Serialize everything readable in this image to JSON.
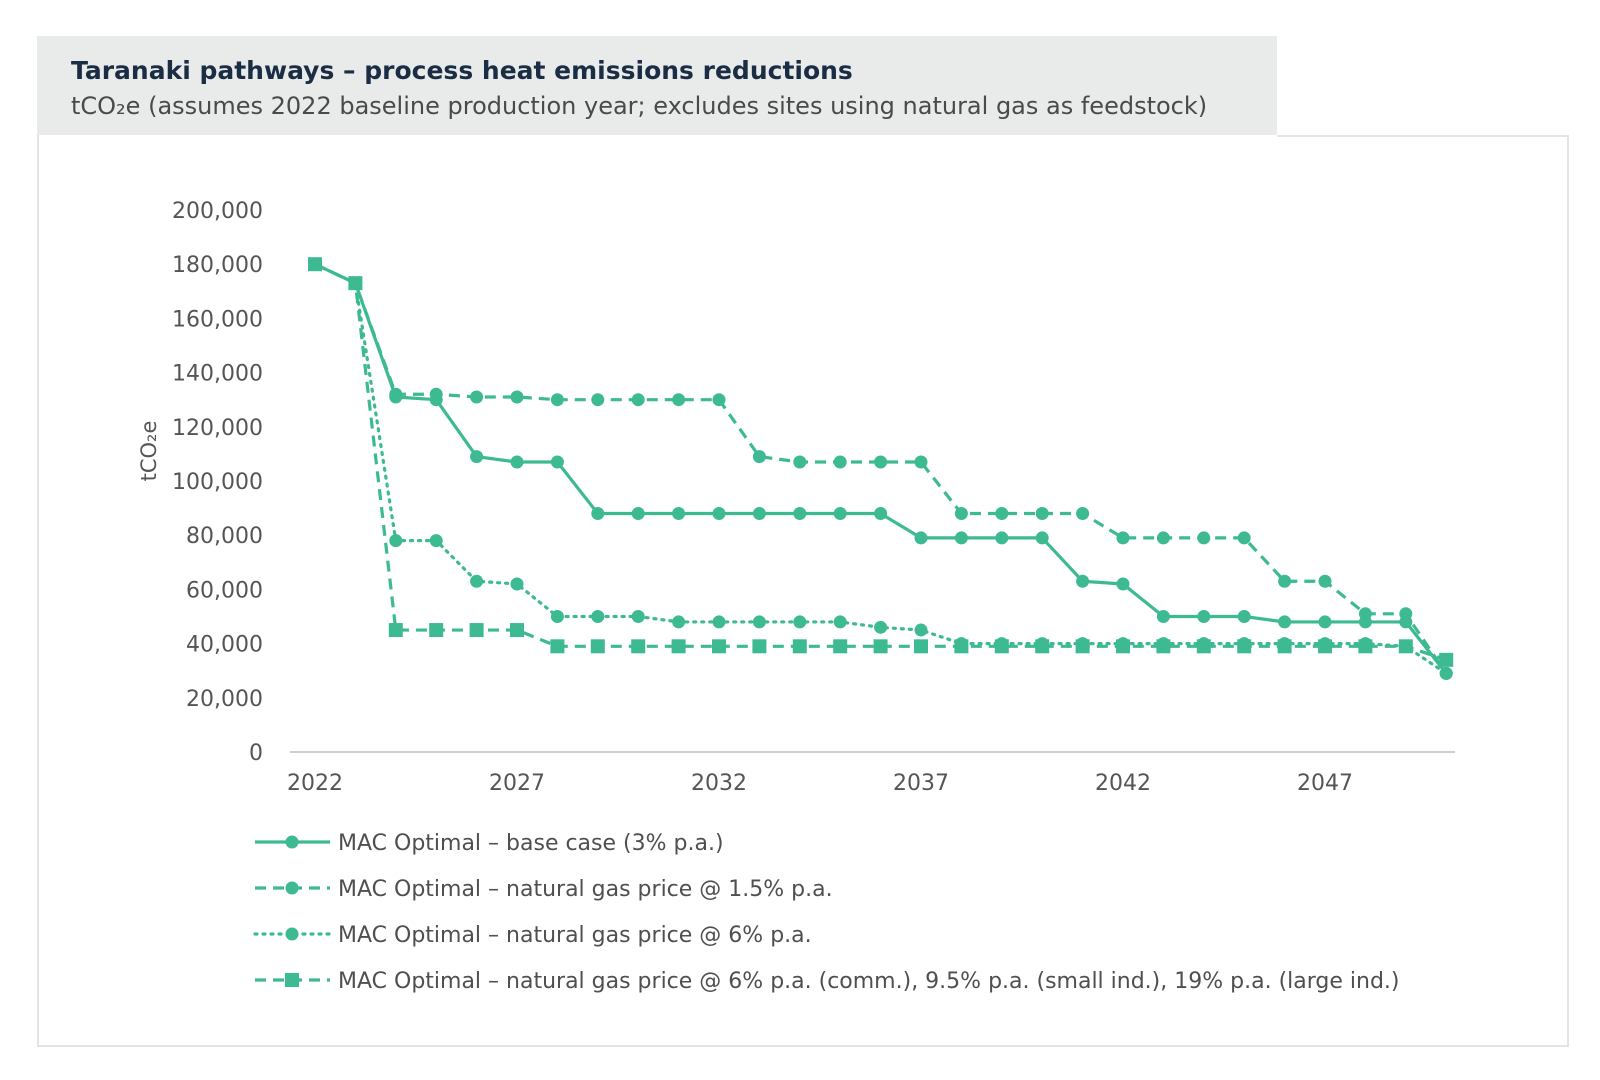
{
  "header": {
    "title": "Taranaki pathways – process heat emissions reductions",
    "subtitle": "tCO₂e (assumes 2022 baseline production year; excludes sites using natural gas as feedstock)"
  },
  "chart_data": {
    "type": "line",
    "ylabel": "tCO₂e",
    "xlabel": "",
    "ylim": [
      0,
      200000
    ],
    "xlim": [
      2022,
      2051
    ],
    "yticks": [
      0,
      20000,
      40000,
      60000,
      80000,
      100000,
      120000,
      140000,
      160000,
      180000,
      200000
    ],
    "ytick_labels": [
      "0",
      "20,000",
      "40,000",
      "60,000",
      "80,000",
      "100,000",
      "120,000",
      "140,000",
      "160,000",
      "180,000",
      "200,000"
    ],
    "xticks": [
      2022,
      2027,
      2032,
      2037,
      2042,
      2047
    ],
    "xtick_labels": [
      "2022",
      "2027",
      "2032",
      "2037",
      "2042",
      "2047"
    ],
    "grid": false,
    "legend_placement": "bottom",
    "color": "#3dba92",
    "x": [
      2022,
      2023,
      2024,
      2025,
      2026,
      2027,
      2028,
      2029,
      2030,
      2031,
      2032,
      2033,
      2034,
      2035,
      2036,
      2037,
      2038,
      2039,
      2040,
      2041,
      2042,
      2043,
      2044,
      2045,
      2046,
      2047,
      2048,
      2049,
      2050
    ],
    "series": [
      {
        "name": "MAC Optimal – base case (3% p.a.)",
        "style": "solid",
        "marker": "circle",
        "values": [
          180000,
          173000,
          131000,
          130000,
          109000,
          107000,
          107000,
          88000,
          88000,
          88000,
          88000,
          88000,
          88000,
          88000,
          88000,
          79000,
          79000,
          79000,
          79000,
          63000,
          62000,
          50000,
          50000,
          50000,
          48000,
          48000,
          48000,
          48000,
          29000
        ]
      },
      {
        "name": "MAC Optimal – natural gas price @ 1.5% p.a.",
        "style": "dashed",
        "marker": "circle",
        "values": [
          180000,
          173000,
          132000,
          132000,
          131000,
          131000,
          130000,
          130000,
          130000,
          130000,
          130000,
          109000,
          107000,
          107000,
          107000,
          107000,
          88000,
          88000,
          88000,
          88000,
          79000,
          79000,
          79000,
          79000,
          63000,
          63000,
          51000,
          51000,
          29000
        ]
      },
      {
        "name": "MAC Optimal – natural gas price @ 6% p.a.",
        "style": "dotted",
        "marker": "circle",
        "values": [
          180000,
          173000,
          78000,
          78000,
          63000,
          62000,
          50000,
          50000,
          50000,
          48000,
          48000,
          48000,
          48000,
          48000,
          46000,
          45000,
          40000,
          40000,
          40000,
          40000,
          40000,
          40000,
          40000,
          40000,
          40000,
          40000,
          40000,
          39000,
          29000
        ]
      },
      {
        "name": "MAC Optimal – natural gas price @ 6% p.a. (comm.), 9.5% p.a. (small ind.), 19% p.a. (large ind.)",
        "style": "dashed",
        "marker": "square",
        "values": [
          180000,
          173000,
          45000,
          45000,
          45000,
          45000,
          39000,
          39000,
          39000,
          39000,
          39000,
          39000,
          39000,
          39000,
          39000,
          39000,
          39000,
          39000,
          39000,
          39000,
          39000,
          39000,
          39000,
          39000,
          39000,
          39000,
          39000,
          39000,
          34000
        ]
      }
    ]
  }
}
